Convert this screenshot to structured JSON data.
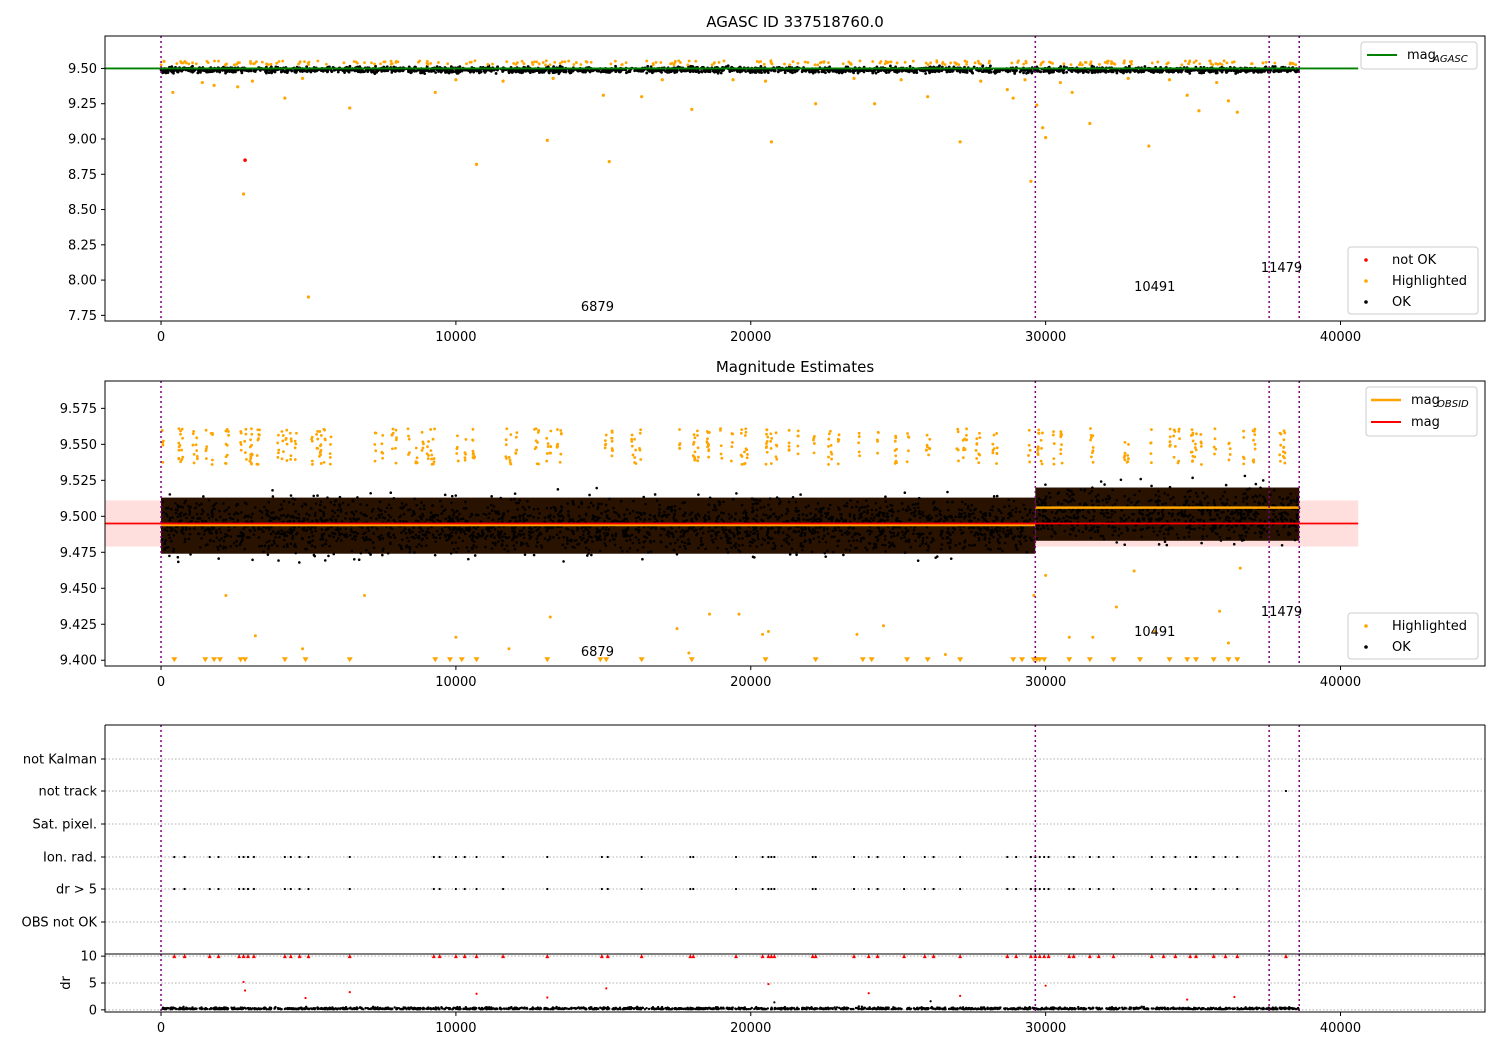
{
  "figure": {
    "x_ticks": [
      0,
      10000,
      20000,
      30000,
      40000
    ],
    "x_range": [
      -1900,
      44900
    ],
    "obsid_boundaries": [
      0,
      29650,
      37580,
      38600
    ],
    "obsid_labels": [
      {
        "text": "6879",
        "x": 14800
      },
      {
        "text": "10491",
        "x": 33700
      },
      {
        "text": "11479",
        "x": 38000
      }
    ],
    "colors": {
      "ok": "#000000",
      "highlighted": "#ffa500",
      "not_ok": "#ff0000",
      "agasc_line": "#008000",
      "obsid_mag_line": "#ffa500",
      "mag_line": "#ff0000",
      "mag_band": "#ffc8c8",
      "boundary": "#800080"
    }
  },
  "chart_data": [
    {
      "type": "scatter",
      "title": "AGASC ID 337518760.0",
      "ylim": [
        7.71,
        9.73
      ],
      "y_ticks": [
        7.75,
        8.0,
        8.25,
        8.5,
        8.75,
        9.0,
        9.25,
        9.5
      ],
      "y_tick_labels": [
        "7.75",
        "8.00",
        "8.25",
        "8.50",
        "8.75",
        "9.00",
        "9.25",
        "9.50"
      ],
      "legend_upper": [
        {
          "name": "mag_AGASC",
          "label": "mag",
          "sub": "AGASC"
        }
      ],
      "legend_lower": [
        "not OK",
        "Highlighted",
        "OK"
      ],
      "agasc_mag": 9.5,
      "band_segments": [
        {
          "x0": 0,
          "x1": 29650,
          "center": 9.488,
          "halfwidth": 0.022
        },
        {
          "x0": 29650,
          "x1": 38600,
          "center": 9.495,
          "halfwidth": 0.022
        }
      ],
      "highlighted_points": [
        [
          100,
          9.55
        ],
        [
          400,
          9.33
        ],
        [
          1400,
          9.4
        ],
        [
          1800,
          9.38
        ],
        [
          2600,
          9.37
        ],
        [
          2800,
          8.61
        ],
        [
          3100,
          9.41
        ],
        [
          4200,
          9.29
        ],
        [
          4800,
          9.43
        ],
        [
          5000,
          7.88
        ],
        [
          6400,
          9.22
        ],
        [
          9300,
          9.33
        ],
        [
          10000,
          9.42
        ],
        [
          10700,
          8.82
        ],
        [
          11600,
          9.41
        ],
        [
          13100,
          8.99
        ],
        [
          13300,
          9.43
        ],
        [
          15000,
          9.31
        ],
        [
          15200,
          8.84
        ],
        [
          16300,
          9.3
        ],
        [
          17000,
          9.42
        ],
        [
          18000,
          9.21
        ],
        [
          19400,
          9.42
        ],
        [
          20500,
          9.41
        ],
        [
          20700,
          8.98
        ],
        [
          22200,
          9.25
        ],
        [
          23500,
          9.43
        ],
        [
          24200,
          9.25
        ],
        [
          25100,
          9.42
        ],
        [
          26000,
          9.3
        ],
        [
          27100,
          8.98
        ],
        [
          27800,
          9.41
        ],
        [
          28700,
          9.35
        ],
        [
          28900,
          9.29
        ],
        [
          29300,
          9.42
        ],
        [
          29500,
          8.7
        ],
        [
          29700,
          9.24
        ],
        [
          29900,
          9.08
        ],
        [
          30000,
          9.01
        ],
        [
          30500,
          9.4
        ],
        [
          30900,
          9.33
        ],
        [
          31500,
          9.11
        ],
        [
          32800,
          9.43
        ],
        [
          33500,
          8.95
        ],
        [
          34200,
          9.42
        ],
        [
          34800,
          9.31
        ],
        [
          35200,
          9.2
        ],
        [
          35800,
          9.4
        ],
        [
          36200,
          9.27
        ],
        [
          36500,
          9.19
        ]
      ],
      "not_ok_points": [
        [
          2850,
          8.85
        ]
      ],
      "ok_band": {
        "center": 9.49,
        "halfwidth": 0.025
      }
    },
    {
      "type": "scatter",
      "title": "Magnitude Estimates",
      "ylim": [
        9.396,
        9.594
      ],
      "y_ticks": [
        9.4,
        9.425,
        9.45,
        9.475,
        9.5,
        9.525,
        9.55,
        9.575
      ],
      "y_tick_labels": [
        "9.400",
        "9.425",
        "9.450",
        "9.475",
        "9.500",
        "9.525",
        "9.550",
        "9.575"
      ],
      "legend_upper": [
        {
          "name": "mag_OBSID",
          "label": "mag",
          "sub": "OBSID"
        },
        {
          "name": "mag",
          "label": "mag",
          "sub": ""
        }
      ],
      "legend_lower": [
        "Highlighted",
        "OK"
      ],
      "mag": 9.495,
      "mag_band": [
        9.479,
        9.511
      ],
      "obsid_mags": [
        {
          "x0": 0,
          "x1": 29650,
          "value": 9.494
        },
        {
          "x0": 29650,
          "x1": 38600,
          "value": 9.506
        }
      ],
      "dense_band": [
        {
          "x0": 0,
          "x1": 29650,
          "y0": 9.474,
          "y1": 9.513
        },
        {
          "x0": 29650,
          "x1": 38600,
          "y0": 9.483,
          "y1": 9.52
        }
      ],
      "highlighted_clamped_x": [
        450,
        1500,
        1800,
        2000,
        2700,
        2850,
        4200,
        4900,
        6400,
        9300,
        9800,
        10200,
        10700,
        13100,
        14900,
        15100,
        16300,
        18000,
        20500,
        22200,
        23800,
        24100,
        25300,
        26000,
        27100,
        28900,
        29200,
        29600,
        29700,
        29800,
        29950,
        30800,
        31500,
        32300,
        33200,
        34200,
        34800,
        35100,
        35700,
        36200,
        36500
      ],
      "highlighted_low_points": [
        [
          2200,
          9.445
        ],
        [
          3200,
          9.417
        ],
        [
          4800,
          9.408
        ],
        [
          6900,
          9.445
        ],
        [
          10000,
          9.416
        ],
        [
          11800,
          9.408
        ],
        [
          13200,
          9.43
        ],
        [
          17500,
          9.422
        ],
        [
          17900,
          9.405
        ],
        [
          18600,
          9.432
        ],
        [
          19600,
          9.432
        ],
        [
          20400,
          9.418
        ],
        [
          20600,
          9.42
        ],
        [
          23600,
          9.418
        ],
        [
          24500,
          9.424
        ],
        [
          26600,
          9.404
        ],
        [
          29600,
          9.445
        ],
        [
          30000,
          9.459
        ],
        [
          30800,
          9.416
        ],
        [
          31600,
          9.416
        ],
        [
          32400,
          9.437
        ],
        [
          33000,
          9.462
        ],
        [
          33700,
          9.42
        ],
        [
          35900,
          9.434
        ],
        [
          36200,
          9.412
        ],
        [
          36600,
          9.464
        ]
      ]
    },
    {
      "type": "scatter",
      "title": "",
      "flag_rows": [
        "not Kalman",
        "not track",
        "Sat. pixel.",
        "Ion. rad.",
        "dr > 5",
        "OBS not OK"
      ],
      "flag_points": {
        "not track": [
          38150
        ],
        "Ion. rad.": [
          450,
          800,
          1650,
          1950,
          2650,
          2800,
          2950,
          3150,
          4200,
          4400,
          4700,
          5000,
          6400,
          9250,
          9450,
          10000,
          10300,
          10700,
          11600,
          13100,
          14950,
          15150,
          16300,
          17950,
          18050,
          19500,
          20400,
          20600,
          20700,
          20800,
          22100,
          22200,
          23500,
          24000,
          24300,
          25200,
          25900,
          26200,
          27100,
          28700,
          29000,
          29500,
          29650,
          29800,
          29950,
          30100,
          30800,
          30950,
          31500,
          31800,
          32300,
          33600,
          34000,
          34400,
          34900,
          35100,
          35700,
          36100,
          36500
        ],
        "dr > 5": [
          450,
          800,
          1650,
          1950,
          2650,
          2800,
          2950,
          3150,
          4200,
          4400,
          4700,
          5000,
          6400,
          9250,
          9450,
          10000,
          10300,
          10700,
          11600,
          13100,
          14950,
          15150,
          16300,
          17950,
          18050,
          19500,
          20400,
          20600,
          20700,
          20800,
          22100,
          22200,
          23500,
          24000,
          24300,
          25200,
          25900,
          26200,
          27100,
          28700,
          29000,
          29500,
          29650,
          29800,
          29950,
          30100,
          30800,
          30950,
          31500,
          31800,
          32300,
          33600,
          34000,
          34400,
          34900,
          35100,
          35700,
          36100,
          36500
        ]
      }
    },
    {
      "type": "scatter",
      "title": "",
      "ylabel": "dr",
      "ylim": [
        -0.4,
        10.4
      ],
      "y_ticks": [
        0,
        5,
        10
      ],
      "y_tick_labels": [
        "0",
        "5",
        "10"
      ],
      "clipped_x": [
        450,
        800,
        1650,
        1950,
        2650,
        2800,
        2950,
        3150,
        4200,
        4400,
        4700,
        5000,
        6400,
        9250,
        9450,
        10000,
        10300,
        10700,
        11600,
        13100,
        14950,
        15150,
        16300,
        17950,
        18050,
        19500,
        20400,
        20600,
        20700,
        20800,
        22100,
        22200,
        23500,
        24000,
        24300,
        25200,
        25900,
        26200,
        27100,
        28700,
        29000,
        29500,
        29650,
        29800,
        29950,
        30100,
        30800,
        30950,
        31500,
        31800,
        32300,
        33600,
        34000,
        34400,
        34900,
        35100,
        35700,
        36100,
        36500,
        38150
      ],
      "outliers": [
        [
          2800,
          5.2
        ],
        [
          2850,
          3.6
        ],
        [
          4900,
          2.2
        ],
        [
          6400,
          3.3
        ],
        [
          10700,
          3.0
        ],
        [
          13100,
          2.3
        ],
        [
          15100,
          4.0
        ],
        [
          20600,
          4.8
        ],
        [
          24000,
          3.1
        ],
        [
          27100,
          2.6
        ],
        [
          30000,
          4.5
        ],
        [
          34800,
          1.9
        ],
        [
          36400,
          2.4
        ],
        [
          26100,
          1.6
        ],
        [
          20800,
          1.4
        ]
      ]
    }
  ]
}
